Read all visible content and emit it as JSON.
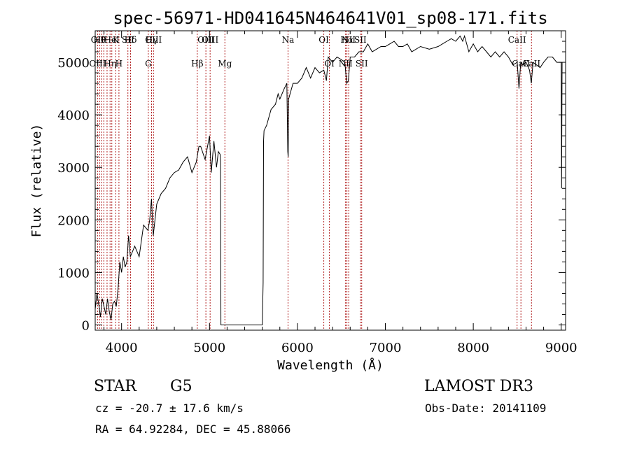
{
  "chart_data": {
    "type": "line",
    "title": "spec-56971-HD041645N464641V01_sp08-171.fits",
    "xlabel": "Wavelength (Å)",
    "ylabel": "Flux (relative)",
    "xlim": [
      3700,
      9050
    ],
    "ylim": [
      -100,
      5600
    ],
    "x_ticks": [
      4000,
      5000,
      6000,
      7000,
      8000,
      9000
    ],
    "y_ticks": [
      0,
      1000,
      2000,
      3000,
      4000,
      5000
    ],
    "grid": false,
    "line_color": "#000000",
    "marker_color": "#b22222",
    "series": [
      {
        "x": [
          3700,
          3720,
          3740,
          3760,
          3780,
          3800,
          3820,
          3840,
          3860,
          3880,
          3900,
          3920,
          3940,
          3960,
          3980,
          4000,
          4020,
          4040,
          4060,
          4080,
          4100,
          4150,
          4200,
          4250,
          4300,
          4320,
          4340,
          4360,
          4400,
          4450,
          4500,
          4550,
          4600,
          4650,
          4700,
          4750,
          4800,
          4850,
          4880,
          4900,
          4950,
          5000,
          5020,
          5050,
          5080,
          5100,
          5120,
          5125,
          5130,
          5140,
          5600,
          5610,
          5615,
          5620,
          5650,
          5700,
          5750,
          5780,
          5800,
          5850,
          5880,
          5890,
          5895,
          5900,
          5950,
          6000,
          6050,
          6100,
          6150,
          6200,
          6250,
          6300,
          6330,
          6350,
          6400,
          6450,
          6500,
          6540,
          6560,
          6580,
          6600,
          6650,
          6700,
          6750,
          6800,
          6850,
          6900,
          6950,
          7000,
          7050,
          7100,
          7150,
          7200,
          7250,
          7300,
          7400,
          7500,
          7600,
          7700,
          7750,
          7800,
          7850,
          7880,
          7900,
          7950,
          8000,
          8050,
          8100,
          8150,
          8200,
          8250,
          8300,
          8350,
          8400,
          8450,
          8500,
          8520,
          8540,
          8560,
          8600,
          8640,
          8660,
          8680,
          8720,
          8760,
          8800,
          8850,
          8900,
          8950,
          9000,
          9005,
          9010
        ],
        "y": [
          300,
          600,
          400,
          150,
          500,
          350,
          200,
          500,
          250,
          100,
          400,
          450,
          350,
          700,
          1200,
          1000,
          1300,
          1100,
          1200,
          1700,
          1300,
          1500,
          1300,
          1900,
          1800,
          2000,
          2400,
          1700,
          2300,
          2500,
          2600,
          2800,
          2900,
          2950,
          3100,
          3200,
          2900,
          3100,
          3400,
          3400,
          3150,
          3600,
          2900,
          3500,
          3000,
          3300,
          3250,
          3100,
          0,
          0,
          0,
          800,
          3500,
          3700,
          3800,
          4100,
          4200,
          4400,
          4300,
          4500,
          4600,
          3300,
          3200,
          4300,
          4600,
          4600,
          4700,
          4900,
          4700,
          4900,
          4800,
          4850,
          4650,
          5100,
          5000,
          5100,
          5050,
          5000,
          4600,
          4650,
          5100,
          5100,
          5200,
          5200,
          5350,
          5200,
          5250,
          5300,
          5300,
          5350,
          5400,
          5300,
          5300,
          5350,
          5200,
          5300,
          5250,
          5300,
          5400,
          5450,
          5400,
          5500,
          5400,
          5500,
          5200,
          5350,
          5200,
          5300,
          5200,
          5100,
          5200,
          5100,
          5200,
          5100,
          4950,
          5000,
          4500,
          5000,
          4950,
          5000,
          4850,
          4600,
          5000,
          4950,
          4900,
          5000,
          5100,
          5100,
          5000,
          5000,
          2600,
          5000
        ]
      }
    ],
    "line_markers": [
      {
        "x": 3727,
        "top": "OII",
        "bottom": "OIII"
      },
      {
        "x": 3750,
        "top": "Hθ",
        "bottom": ""
      },
      {
        "x": 3770,
        "top": "",
        "bottom": ""
      },
      {
        "x": 3798,
        "top": "",
        "bottom": ""
      },
      {
        "x": 3835,
        "top": "",
        "bottom": ""
      },
      {
        "x": 3869,
        "top": "",
        "bottom": "Hη"
      },
      {
        "x": 3889,
        "top": "HeI",
        "bottom": ""
      },
      {
        "x": 3934,
        "top": "K",
        "bottom": ""
      },
      {
        "x": 3970,
        "top": "",
        "bottom": "H"
      },
      {
        "x": 4072,
        "top": "SII",
        "bottom": ""
      },
      {
        "x": 4102,
        "top": "Hδ",
        "bottom": ""
      },
      {
        "x": 4304,
        "top": "",
        "bottom": "G"
      },
      {
        "x": 4341,
        "top": "Hγ",
        "bottom": ""
      },
      {
        "x": 4363,
        "top": "OIII",
        "bottom": ""
      },
      {
        "x": 4861,
        "top": "",
        "bottom": "Hβ"
      },
      {
        "x": 4959,
        "top": "OIII",
        "bottom": ""
      },
      {
        "x": 5007,
        "top": "OIII",
        "bottom": ""
      },
      {
        "x": 5175,
        "top": "",
        "bottom": "Mg"
      },
      {
        "x": 5893,
        "top": "Na",
        "bottom": ""
      },
      {
        "x": 6300,
        "top": "OI",
        "bottom": ""
      },
      {
        "x": 6364,
        "top": "",
        "bottom": "OI"
      },
      {
        "x": 6548,
        "top": "",
        "bottom": "NII"
      },
      {
        "x": 6563,
        "top": "Hα",
        "bottom": ""
      },
      {
        "x": 6583,
        "top": "NII",
        "bottom": ""
      },
      {
        "x": 6716,
        "top": "SII",
        "bottom": ""
      },
      {
        "x": 6731,
        "top": "",
        "bottom": "SII"
      },
      {
        "x": 8498,
        "top": "CaII",
        "bottom": ""
      },
      {
        "x": 8542,
        "top": "",
        "bottom": "CaII"
      },
      {
        "x": 8662,
        "top": "",
        "bottom": "CaII"
      }
    ]
  },
  "info": {
    "object_class": "STAR",
    "subclass": "G5",
    "survey": "LAMOST DR3",
    "cz": "cz = -20.7 ± 17.6 km/s",
    "obs_date": "Obs-Date: 20141109",
    "coords": "RA =  64.92284, DEC =  45.88066"
  }
}
